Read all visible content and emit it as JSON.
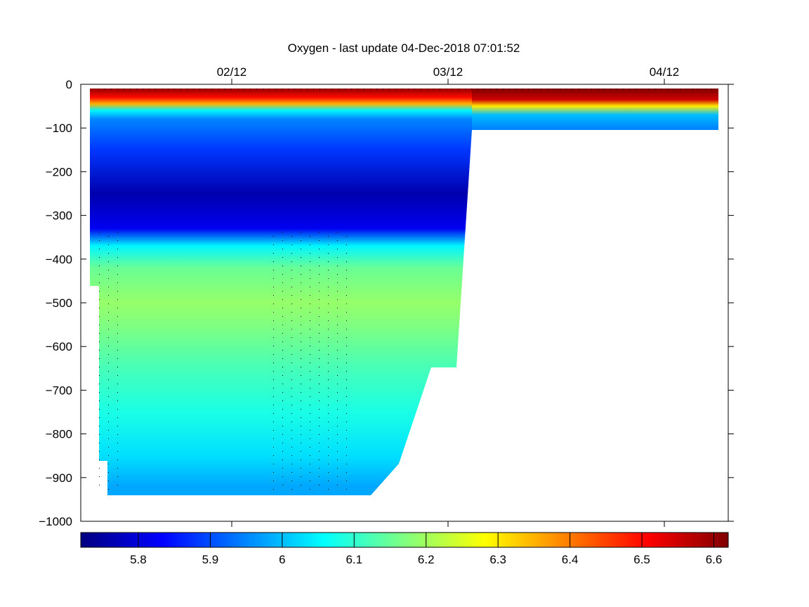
{
  "chart_data": {
    "type": "heatmap",
    "title": "Oxygen - last update 04-Dec-2018 07:01:52",
    "xlabel": "",
    "ylabel": "",
    "x_ticks": [
      "02/12",
      "03/12",
      "04/12"
    ],
    "y_ticks": [
      0,
      -100,
      -200,
      -300,
      -400,
      -500,
      -600,
      -700,
      -800,
      -900,
      -1000
    ],
    "ylim": [
      -1000,
      0
    ],
    "colorbar": {
      "colormap": "jet",
      "range": [
        5.72,
        6.62
      ],
      "ticks": [
        5.8,
        5.9,
        6,
        6.1,
        6.2,
        6.3,
        6.4,
        6.5,
        6.6
      ],
      "tick_labels": [
        "5.8",
        "5.9",
        "6",
        "6.1",
        "6.2",
        "6.3",
        "6.4",
        "6.5",
        "6.6"
      ]
    },
    "profile": {
      "depths": [
        -10,
        -30,
        -45,
        -60,
        -80,
        -150,
        -250,
        -330,
        -370,
        -420,
        -500,
        -550,
        -650,
        -750,
        -850,
        -920
      ],
      "values": [
        6.6,
        6.5,
        6.35,
        6.05,
        5.95,
        5.88,
        5.76,
        5.82,
        6.05,
        6.15,
        6.19,
        6.17,
        6.12,
        6.08,
        6.03,
        5.98
      ],
      "deep_region_values": [
        6.6,
        6.5,
        6.35,
        6.05,
        5.95,
        5.9,
        5.85,
        5.88,
        5.95,
        6.05,
        6.1,
        6.1,
        6.08,
        6.05,
        6.0,
        5.97
      ],
      "shallow_region_values": [
        6.62,
        6.55,
        6.3,
        6.0,
        5.95
      ]
    },
    "grid": false,
    "legend": "colorbar-bottom"
  }
}
